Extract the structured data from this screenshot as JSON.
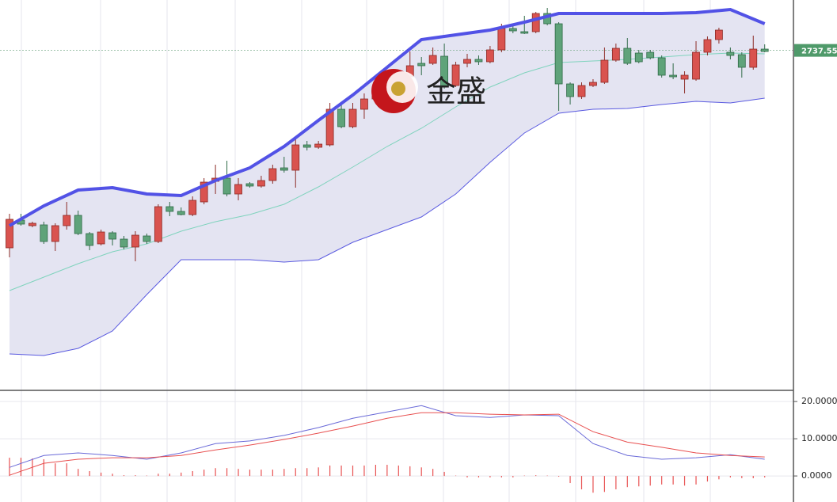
{
  "chart_data": [
    {
      "type": "candlestick",
      "ylim": [
        2565.8,
        2763
      ],
      "up_color": "#d9534f",
      "down_color": "#5fa37a",
      "open": [
        2637.8,
        2651.8,
        2649,
        2649.4,
        2641,
        2649,
        2654.2,
        2645,
        2639.8,
        2645.4,
        2642.2,
        2638.2,
        2643.8,
        2641,
        2658.6,
        2656.2,
        2654.6,
        2661,
        2671.4,
        2673,
        2665,
        2670.2,
        2669,
        2671.8,
        2678.2,
        2677,
        2689.8,
        2688.6,
        2689.8,
        2707.8,
        2699,
        2707.8,
        2713,
        2718.2,
        2718.2,
        2724.2,
        2731,
        2731,
        2734.6,
        2719.8,
        2731,
        2733,
        2731.8,
        2737.8,
        2748.6,
        2747,
        2747,
        2756.2,
        2751,
        2720.6,
        2714.2,
        2719.8,
        2721.4,
        2732.6,
        2738.6,
        2736.2,
        2736.6,
        2733.8,
        2725,
        2723,
        2723,
        2736.6,
        2743,
        2736.6,
        2735.4,
        2729,
        2738.2
      ],
      "high": [
        2655,
        2655,
        2651,
        2651,
        2650.2,
        2661,
        2656.6,
        2645.8,
        2647,
        2646.2,
        2643.8,
        2646.2,
        2645,
        2659.8,
        2661,
        2658.2,
        2663.8,
        2673,
        2679.8,
        2681.8,
        2673,
        2671,
        2674.2,
        2679.8,
        2683.8,
        2693,
        2691.8,
        2691.8,
        2711,
        2711,
        2711,
        2715.8,
        2723,
        2723,
        2727.8,
        2737,
        2734.2,
        2739,
        2741,
        2731.8,
        2735.8,
        2735,
        2739.8,
        2751,
        2749.8,
        2755,
        2757,
        2759,
        2751.8,
        2721.4,
        2721.4,
        2723,
        2739,
        2741,
        2743.8,
        2737.8,
        2737.8,
        2735,
        2731,
        2727,
        2742.2,
        2744.6,
        2749,
        2739,
        2736.6,
        2745,
        2740.6
      ],
      "low": [
        2633,
        2649,
        2648.2,
        2639.8,
        2636.2,
        2647,
        2644.2,
        2636.6,
        2639,
        2639,
        2637,
        2631,
        2639.8,
        2640.2,
        2653.8,
        2654.2,
        2653.8,
        2659.8,
        2665,
        2663.8,
        2661.8,
        2668.2,
        2668.2,
        2670.2,
        2675.8,
        2668.2,
        2687,
        2687.8,
        2689,
        2698.2,
        2698.2,
        2703,
        2711.8,
        2714.2,
        2717,
        2723,
        2725,
        2730.2,
        2718.2,
        2719,
        2729,
        2730.2,
        2731,
        2736.6,
        2746.2,
        2745.8,
        2746.2,
        2750.2,
        2707,
        2710.2,
        2713,
        2719,
        2720.6,
        2731.8,
        2730.2,
        2731,
        2733,
        2723.8,
        2723,
        2715.8,
        2722.2,
        2735,
        2741,
        2733,
        2723.8,
        2727.8,
        2736.6
      ],
      "close": [
        2652.2,
        2649.8,
        2650.2,
        2641,
        2649,
        2654.2,
        2645,
        2639,
        2645.8,
        2642.2,
        2638.2,
        2644.2,
        2641,
        2658.6,
        2656.2,
        2654.6,
        2661.8,
        2671,
        2673,
        2665,
        2669.8,
        2669,
        2671.8,
        2677.8,
        2677,
        2689.8,
        2688.6,
        2690.2,
        2707.8,
        2699,
        2707.8,
        2713,
        2718.2,
        2715.8,
        2724.2,
        2729.8,
        2729.8,
        2735,
        2719,
        2730.2,
        2733,
        2731.8,
        2737.8,
        2748.6,
        2747.4,
        2746.2,
        2756.2,
        2751,
        2720.6,
        2714.2,
        2719.8,
        2721.4,
        2732.6,
        2738.6,
        2731,
        2731.8,
        2733.8,
        2725,
        2724.2,
        2725,
        2736.6,
        2743,
        2747.8,
        2735,
        2729,
        2738.2,
        2737
      ],
      "bands": {
        "x": [
          0,
          3,
          6,
          9,
          12,
          15,
          18,
          21,
          24,
          27,
          30,
          33,
          36,
          39,
          42,
          45,
          48,
          51,
          54,
          57,
          60,
          63,
          66
        ],
        "upper": [
          2649,
          2659,
          2667,
          2668.2,
          2665,
          2664.2,
          2671.8,
          2678.2,
          2689,
          2702.2,
          2715,
          2729,
          2743,
          2745.4,
          2747.8,
          2751.8,
          2756.2,
          2756.2,
          2756.2,
          2756.2,
          2756.6,
          2758.2,
          2751
        ],
        "middle": [
          2616.2,
          2623,
          2629.8,
          2635.8,
          2639.8,
          2646.2,
          2651,
          2654.6,
          2659.8,
          2668.6,
          2678.6,
          2689,
          2698.2,
          2709,
          2719,
          2726.2,
          2731.4,
          2732.2,
          2733,
          2734.2,
          2735.4,
          2736.2,
          2735.8
        ],
        "lower": [
          2584.2,
          2583.4,
          2587,
          2595.8,
          2614.2,
          2631.8,
          2631.8,
          2631.8,
          2630.6,
          2631.8,
          2640.6,
          2647,
          2653.4,
          2665,
          2681,
          2695.8,
          2705.8,
          2707.8,
          2708.2,
          2710.2,
          2711.8,
          2711,
          2713.4
        ],
        "upper_color": "#5252e6",
        "middle_color": "#7fd3bd",
        "lower_color": "#5a5ae0",
        "fill": "#e4e4f2"
      },
      "last_price": 2737.55,
      "watermark": "金盛"
    },
    {
      "type": "macd",
      "ylim": [
        -7,
        23
      ],
      "yticks": [
        {
          "value": 0,
          "label": "0.0000"
        },
        {
          "value": 10,
          "label": "10.0000"
        },
        {
          "value": 20,
          "label": "20.0000"
        }
      ],
      "x": [
        0,
        3,
        6,
        9,
        12,
        15,
        18,
        21,
        24,
        27,
        30,
        33,
        36,
        39,
        42,
        45,
        48,
        51,
        54,
        57,
        60,
        63,
        66
      ],
      "series": [
        {
          "color": "#6a6ad8",
          "values": [
            2.3,
            5.5,
            6.2,
            5.5,
            4.5,
            6.2,
            8.7,
            9.4,
            10.9,
            13.0,
            15.5,
            17.2,
            18.9,
            16.2,
            15.7,
            16.4,
            16.2,
            8.7,
            5.5,
            4.5,
            4.9,
            5.7,
            4.5
          ]
        },
        {
          "color": "#e85050",
          "values": [
            0.2,
            3.4,
            4.5,
            4.9,
            4.9,
            5.5,
            7.0,
            8.3,
            9.8,
            11.5,
            13.4,
            15.5,
            17.0,
            17.0,
            16.6,
            16.4,
            16.6,
            11.9,
            9.1,
            7.7,
            6.2,
            5.5,
            5.1
          ]
        }
      ],
      "histogram": {
        "color": "#e85050",
        "values": [
          4.9,
          4.9,
          4.7,
          4.5,
          3.4,
          3.4,
          1.9,
          1.3,
          0.9,
          0.6,
          0.2,
          0.2,
          0,
          0.6,
          0.6,
          0.9,
          1.3,
          1.7,
          2.1,
          2.1,
          1.9,
          1.7,
          1.7,
          1.7,
          1.9,
          2.1,
          2.1,
          2.3,
          2.8,
          2.8,
          2.8,
          2.8,
          3.0,
          3.0,
          2.8,
          2.6,
          2.3,
          1.9,
          1.1,
          0,
          -0.4,
          -0.4,
          -0.4,
          -0.4,
          -0.4,
          0,
          0.2,
          0,
          -0.2,
          -1.9,
          -3.6,
          -4.5,
          -4.3,
          -3.6,
          -3.0,
          -2.8,
          -2.6,
          -2.3,
          -2.3,
          -2.6,
          -2.3,
          -1.5,
          -0.9,
          -0.4,
          -0.6,
          -0.6,
          -0.4
        ]
      }
    }
  ]
}
